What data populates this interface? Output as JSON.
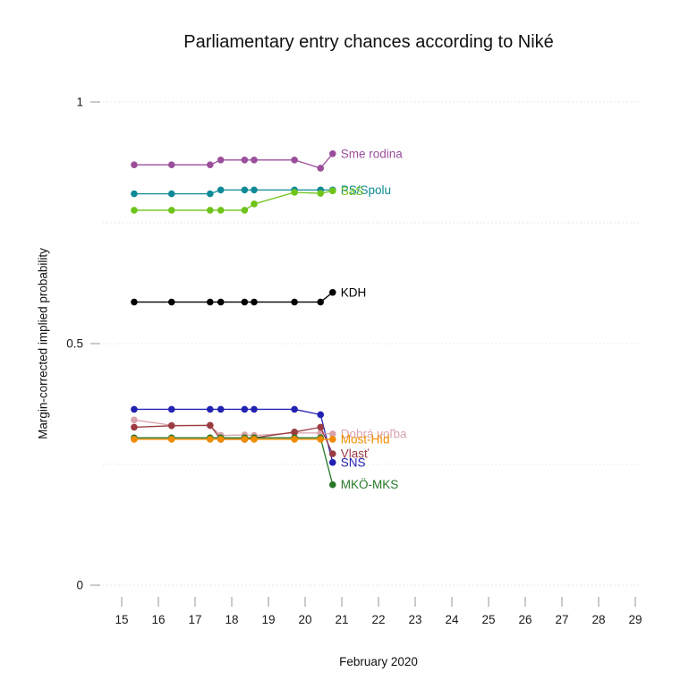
{
  "chart_data": {
    "type": "line",
    "title": "Parliamentary entry chances according to Niké",
    "xlabel": "February 2020",
    "ylabel": "Margin-corrected implied probability",
    "xlim": [
      15,
      29
    ],
    "ylim": [
      0,
      1
    ],
    "grid": "dotted horizontal",
    "grid_y": [
      0,
      0.25,
      0.5,
      0.75,
      1
    ],
    "legend_position": "labels at line ends",
    "yticks": [
      {
        "value": 1,
        "label": "1"
      },
      {
        "value": 0.5,
        "label": "0.5"
      },
      {
        "value": 0,
        "label": "0"
      }
    ],
    "xticks": [
      {
        "value": 15,
        "label": "15"
      },
      {
        "value": 16,
        "label": "16"
      },
      {
        "value": 17,
        "label": "17"
      },
      {
        "value": 18,
        "label": "18"
      },
      {
        "value": 19,
        "label": "19"
      },
      {
        "value": 20,
        "label": "20"
      },
      {
        "value": 21,
        "label": "21"
      },
      {
        "value": 22,
        "label": "22"
      },
      {
        "value": 23,
        "label": "23"
      },
      {
        "value": 24,
        "label": "24"
      },
      {
        "value": 25,
        "label": "25"
      },
      {
        "value": 26,
        "label": "26"
      },
      {
        "value": 27,
        "label": "27"
      },
      {
        "value": 28,
        "label": "28"
      },
      {
        "value": 29,
        "label": "29"
      }
    ],
    "x": [
      15.34,
      16.36,
      17.41,
      17.7,
      18.35,
      18.61,
      19.71,
      20.42,
      20.75
    ],
    "series": [
      {
        "name": "PS/Spolu",
        "color": "#0e8a96",
        "values": [
          0.81,
          0.81,
          0.81,
          0.818,
          0.818,
          0.818,
          0.818,
          0.818,
          0.818
        ]
      },
      {
        "name": "SaS",
        "color": "#6fc41c",
        "values": [
          0.776,
          0.776,
          0.776,
          0.776,
          0.776,
          0.789,
          0.813,
          0.811,
          0.816
        ]
      },
      {
        "name": "Sme rodina",
        "color": "#9b4f9b",
        "values": [
          0.87,
          0.87,
          0.87,
          0.88,
          0.88,
          0.88,
          0.88,
          0.863,
          0.893
        ]
      },
      {
        "name": "KDH",
        "color": "#000000",
        "values": [
          0.586,
          0.586,
          0.586,
          0.586,
          0.586,
          0.586,
          0.586,
          0.586,
          0.606
        ]
      },
      {
        "name": "SNS",
        "color": "#2222b2",
        "values": [
          0.364,
          0.364,
          0.364,
          0.364,
          0.364,
          0.364,
          0.364,
          0.353,
          0.254
        ]
      },
      {
        "name": "Dobrá voľba",
        "color": "#d9a3ac",
        "values": [
          0.342,
          0.331,
          0.33,
          0.31,
          0.311,
          0.31,
          0.315,
          0.315,
          0.313
        ]
      },
      {
        "name": "Vlasť",
        "color": "#9a3c42",
        "values": [
          0.327,
          0.33,
          0.331,
          0.302,
          0.302,
          0.305,
          0.317,
          0.327,
          0.272
        ]
      },
      {
        "name": "MKÖ-MKS",
        "color": "#287828",
        "values": [
          0.305,
          0.305,
          0.305,
          0.305,
          0.305,
          0.305,
          0.305,
          0.305,
          0.208
        ]
      },
      {
        "name": "Most-Híd",
        "color": "#f08c00",
        "values": [
          0.302,
          0.302,
          0.302,
          0.302,
          0.302,
          0.302,
          0.302,
          0.302,
          0.302
        ]
      }
    ]
  }
}
